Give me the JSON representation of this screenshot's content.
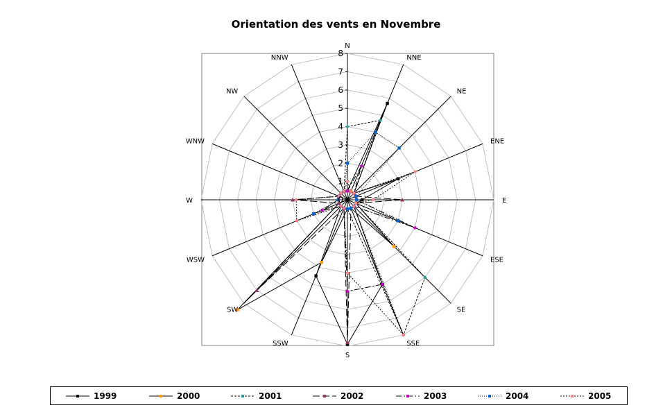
{
  "chart_data": {
    "type": "radar",
    "title": "Orientation des vents en Novembre",
    "axes": [
      "N",
      "NNE",
      "NE",
      "ENE",
      "E",
      "ESE",
      "SE",
      "SSE",
      "S",
      "SSW",
      "SW",
      "WSW",
      "W",
      "WNW",
      "NW",
      "NNW"
    ],
    "rlim": [
      0,
      8
    ],
    "r_ticks": [
      "0",
      "1",
      "2",
      "3",
      "4",
      "5",
      "6",
      "7",
      "8"
    ],
    "grid": true,
    "legend_position": "bottom",
    "series": [
      {
        "name": "1999",
        "color": "#000000",
        "dash": "",
        "marker": "square",
        "values": [
          0.5,
          5.7,
          0.5,
          3.0,
          0.8,
          0.5,
          0.5,
          5.0,
          7.9,
          4.5,
          0.5,
          0.5,
          0.5,
          0.5,
          0.5,
          0.5
        ]
      },
      {
        "name": "2000",
        "color": "#ff9900",
        "dash": "",
        "marker": "square",
        "values": [
          0.5,
          0.5,
          0.5,
          0.5,
          0.5,
          0.5,
          3.6,
          0.5,
          0.5,
          3.7,
          8.5,
          0.5,
          0.5,
          0.5,
          0.5,
          0.5
        ]
      },
      {
        "name": "2001",
        "color": "#339999",
        "dash": "3,2",
        "marker": "diamond",
        "values": [
          4.0,
          4.7,
          0.5,
          0.5,
          0.5,
          0.5,
          6.0,
          8.0,
          0.5,
          0.5,
          0.5,
          0.5,
          0.5,
          0.5,
          0.5,
          0.5
        ]
      },
      {
        "name": "2002",
        "color": "#993366",
        "dash": "10,4",
        "marker": "triangle",
        "values": [
          0.5,
          0.5,
          0.5,
          0.5,
          3.0,
          0.5,
          0.5,
          0.5,
          7.8,
          0.5,
          7.0,
          0.5,
          3.0,
          0.5,
          0.5,
          0.5
        ]
      },
      {
        "name": "2003",
        "color": "#cc00cc",
        "dash": "8,3,2,3",
        "marker": "diamond",
        "values": [
          0.5,
          2.0,
          0.5,
          0.5,
          0.5,
          4.0,
          0.5,
          5.0,
          5.0,
          0.5,
          0.5,
          1.5,
          0.5,
          0.5,
          0.5,
          0.5
        ]
      },
      {
        "name": "2004",
        "color": "#0066cc",
        "dash": "1,2",
        "marker": "square",
        "values": [
          2.0,
          4.0,
          4.0,
          0.5,
          0.5,
          3.0,
          0.5,
          0.5,
          0.5,
          0.5,
          0.5,
          2.0,
          0.5,
          0.5,
          0.5,
          0.5
        ]
      },
      {
        "name": "2005",
        "color": "#ff8080",
        "dash": "2,2",
        "marker": "circle",
        "values": [
          1.0,
          0.5,
          0.5,
          4.0,
          1.4,
          0.5,
          0.5,
          8.0,
          4.0,
          0.5,
          0.5,
          3.0,
          2.8,
          0.5,
          0.5,
          0.5
        ]
      }
    ]
  }
}
